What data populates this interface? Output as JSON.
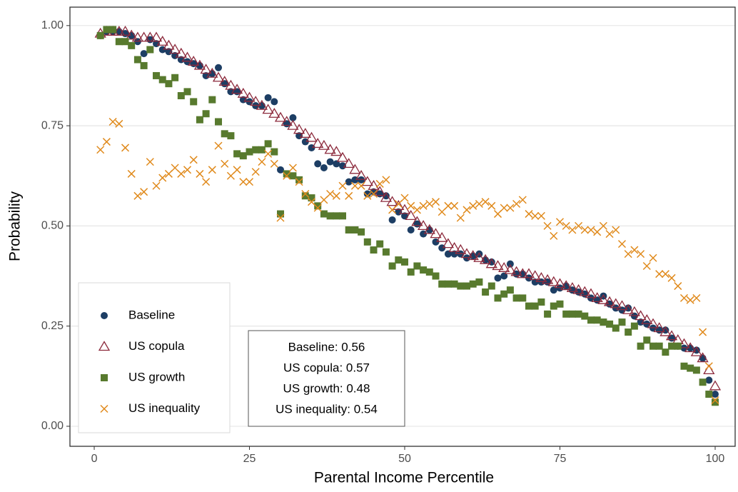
{
  "chart_data": {
    "type": "scatter",
    "x_label": "Parental Income Percentile",
    "y_label": "Probability",
    "xlim": [
      -3.91,
      103.22
    ],
    "ylim": [
      -0.05,
      1.046
    ],
    "xticks": [
      0,
      25,
      50,
      75,
      100
    ],
    "yticks": [
      {
        "value": 0,
        "label": "0.00"
      },
      0.25,
      {
        "value": 0.5,
        "label": "0.50"
      },
      0.75,
      {
        "value": 1,
        "label": "1.00"
      }
    ],
    "grid": true,
    "legend": "bottom-left",
    "annotations": [
      "Baseline: 0.56",
      "US copula: 0.57",
      "US growth: 0.48",
      "US inequality: 0.54"
    ],
    "x": [
      1,
      2,
      3,
      4,
      5,
      6,
      7,
      8,
      9,
      10,
      11,
      12,
      13,
      14,
      15,
      16,
      17,
      18,
      19,
      20,
      21,
      22,
      23,
      24,
      25,
      26,
      27,
      28,
      29,
      30,
      31,
      32,
      33,
      34,
      35,
      36,
      37,
      38,
      39,
      40,
      41,
      42,
      43,
      44,
      45,
      46,
      47,
      48,
      49,
      50,
      51,
      52,
      53,
      54,
      55,
      56,
      57,
      58,
      59,
      60,
      61,
      62,
      63,
      64,
      65,
      66,
      67,
      68,
      69,
      70,
      71,
      72,
      73,
      74,
      75,
      76,
      77,
      78,
      79,
      80,
      81,
      82,
      83,
      84,
      85,
      86,
      87,
      88,
      89,
      90,
      91,
      92,
      93,
      94,
      95,
      96,
      97,
      98,
      99,
      100
    ],
    "series": [
      {
        "name": "Baseline",
        "color": "#1d3e64",
        "marker": "circle",
        "values": [
          0.975,
          0.985,
          0.985,
          0.985,
          0.98,
          0.975,
          0.96,
          0.93,
          0.965,
          0.955,
          0.94,
          0.935,
          0.925,
          0.915,
          0.91,
          0.905,
          0.9,
          0.875,
          0.88,
          0.895,
          0.855,
          0.835,
          0.835,
          0.815,
          0.81,
          0.8,
          0.8,
          0.82,
          0.81,
          0.64,
          0.755,
          0.77,
          0.725,
          0.71,
          0.695,
          0.655,
          0.645,
          0.66,
          0.655,
          0.65,
          0.61,
          0.615,
          0.615,
          0.58,
          0.585,
          0.58,
          0.575,
          0.515,
          0.535,
          0.525,
          0.49,
          0.505,
          0.48,
          0.49,
          0.46,
          0.445,
          0.43,
          0.43,
          0.43,
          0.42,
          0.425,
          0.43,
          0.415,
          0.41,
          0.37,
          0.375,
          0.405,
          0.38,
          0.38,
          0.37,
          0.36,
          0.36,
          0.36,
          0.34,
          0.345,
          0.35,
          0.34,
          0.335,
          0.33,
          0.32,
          0.315,
          0.325,
          0.305,
          0.295,
          0.29,
          0.295,
          0.275,
          0.26,
          0.255,
          0.245,
          0.24,
          0.24,
          0.22,
          0.2,
          0.195,
          0.195,
          0.19,
          0.17,
          0.115,
          0.08
        ]
      },
      {
        "name": "US copula",
        "color": "#8c2a3c",
        "marker": "triangle-open",
        "values": [
          0.98,
          0.985,
          0.985,
          0.985,
          0.985,
          0.975,
          0.97,
          0.97,
          0.97,
          0.97,
          0.96,
          0.95,
          0.94,
          0.93,
          0.92,
          0.91,
          0.9,
          0.89,
          0.88,
          0.87,
          0.86,
          0.85,
          0.84,
          0.83,
          0.82,
          0.81,
          0.8,
          0.79,
          0.78,
          0.77,
          0.76,
          0.75,
          0.74,
          0.73,
          0.72,
          0.705,
          0.7,
          0.69,
          0.685,
          0.67,
          0.655,
          0.64,
          0.625,
          0.61,
          0.6,
          0.585,
          0.57,
          0.56,
          0.55,
          0.54,
          0.525,
          0.51,
          0.5,
          0.49,
          0.48,
          0.47,
          0.455,
          0.445,
          0.44,
          0.43,
          0.425,
          0.42,
          0.415,
          0.405,
          0.4,
          0.395,
          0.39,
          0.385,
          0.38,
          0.38,
          0.375,
          0.37,
          0.365,
          0.36,
          0.355,
          0.35,
          0.345,
          0.34,
          0.335,
          0.33,
          0.32,
          0.315,
          0.31,
          0.305,
          0.3,
          0.29,
          0.285,
          0.275,
          0.265,
          0.255,
          0.245,
          0.235,
          0.225,
          0.215,
          0.205,
          0.195,
          0.185,
          0.17,
          0.14,
          0.1
        ]
      },
      {
        "name": "US growth",
        "color": "#587a2e",
        "marker": "square",
        "values": [
          0.975,
          0.99,
          0.99,
          0.96,
          0.96,
          0.95,
          0.915,
          0.9,
          0.94,
          0.875,
          0.865,
          0.855,
          0.87,
          0.825,
          0.835,
          0.81,
          0.765,
          0.78,
          0.815,
          0.76,
          0.73,
          0.725,
          0.68,
          0.675,
          0.685,
          0.69,
          0.69,
          0.705,
          0.685,
          0.53,
          0.63,
          0.625,
          0.615,
          0.575,
          0.57,
          0.55,
          0.53,
          0.525,
          0.525,
          0.525,
          0.49,
          0.49,
          0.485,
          0.46,
          0.44,
          0.455,
          0.435,
          0.4,
          0.415,
          0.41,
          0.385,
          0.4,
          0.39,
          0.385,
          0.375,
          0.355,
          0.355,
          0.355,
          0.35,
          0.35,
          0.355,
          0.36,
          0.335,
          0.35,
          0.32,
          0.33,
          0.34,
          0.32,
          0.32,
          0.3,
          0.3,
          0.31,
          0.28,
          0.3,
          0.305,
          0.28,
          0.28,
          0.28,
          0.275,
          0.265,
          0.265,
          0.26,
          0.255,
          0.245,
          0.26,
          0.235,
          0.25,
          0.2,
          0.215,
          0.2,
          0.2,
          0.185,
          0.2,
          0.2,
          0.15,
          0.145,
          0.14,
          0.11,
          0.08,
          0.06
        ]
      },
      {
        "name": "US inequality",
        "color": "#e08a1c",
        "marker": "x",
        "values": [
          0.69,
          0.71,
          0.76,
          0.755,
          0.695,
          0.63,
          0.575,
          0.585,
          0.66,
          0.6,
          0.62,
          0.63,
          0.645,
          0.63,
          0.64,
          0.665,
          0.63,
          0.61,
          0.64,
          0.7,
          0.655,
          0.625,
          0.64,
          0.61,
          0.61,
          0.635,
          0.66,
          0.68,
          0.655,
          0.52,
          0.625,
          0.645,
          0.61,
          0.58,
          0.56,
          0.545,
          0.565,
          0.58,
          0.575,
          0.6,
          0.575,
          0.6,
          0.6,
          0.575,
          0.58,
          0.605,
          0.615,
          0.54,
          0.555,
          0.57,
          0.55,
          0.54,
          0.55,
          0.555,
          0.56,
          0.535,
          0.55,
          0.55,
          0.52,
          0.54,
          0.55,
          0.555,
          0.56,
          0.55,
          0.53,
          0.545,
          0.545,
          0.555,
          0.565,
          0.53,
          0.525,
          0.525,
          0.5,
          0.475,
          0.51,
          0.5,
          0.49,
          0.5,
          0.49,
          0.49,
          0.485,
          0.5,
          0.48,
          0.49,
          0.455,
          0.43,
          0.44,
          0.43,
          0.4,
          0.42,
          0.38,
          0.38,
          0.37,
          0.35,
          0.32,
          0.315,
          0.32,
          0.235,
          0.15,
          0.065
        ]
      }
    ]
  }
}
